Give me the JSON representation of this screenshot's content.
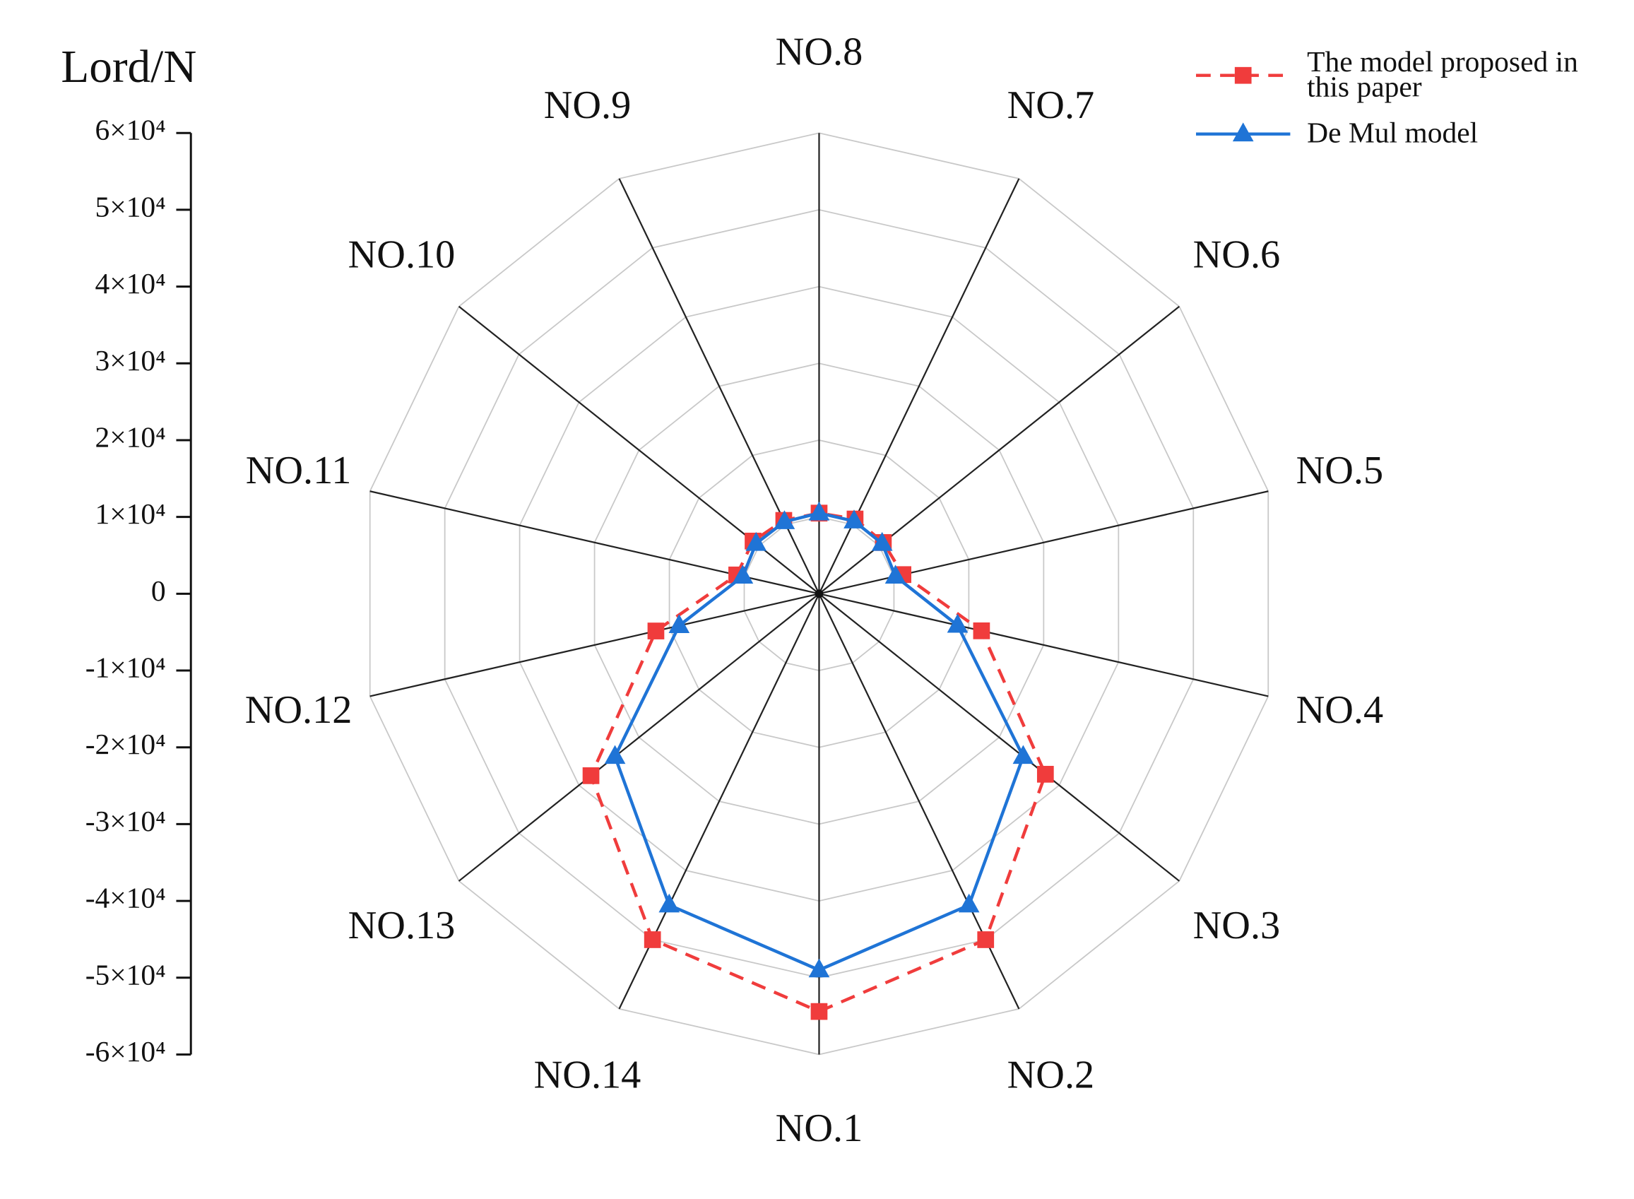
{
  "chart_data": {
    "type": "radar",
    "y_axis_title": "Lord/N",
    "categories": [
      "NO.1",
      "NO.2",
      "NO.3",
      "NO.4",
      "NO.5",
      "NO.6",
      "NO.7",
      "NO.8",
      "NO.9",
      "NO.10",
      "NO.11",
      "NO.12",
      "NO.13",
      "NO.14"
    ],
    "series": [
      {
        "name": "The model proposed in this paper",
        "color": "#f03c3c",
        "marker": "square",
        "line_style": "dashed",
        "values": [
          54400,
          50000,
          37700,
          21700,
          11200,
          10700,
          10800,
          10500,
          10600,
          11000,
          11000,
          21800,
          38000,
          50000
        ]
      },
      {
        "name": "De Mul model",
        "color": "#1f74d6",
        "marker": "triangle",
        "line_style": "solid",
        "values": [
          49000,
          45000,
          34000,
          18500,
          10200,
          10500,
          10500,
          10500,
          10400,
          10500,
          10200,
          18700,
          34000,
          45000
        ]
      }
    ],
    "rlim": [
      0,
      60000
    ],
    "rticks": [
      0,
      10000,
      20000,
      30000,
      40000,
      50000,
      60000
    ],
    "ylim": [
      -60000,
      60000
    ],
    "yticks": [
      {
        "value": 60000,
        "label": "6×10⁴"
      },
      {
        "value": 50000,
        "label": "5×10⁴"
      },
      {
        "value": 40000,
        "label": "4×10⁴"
      },
      {
        "value": 30000,
        "label": "3×10⁴"
      },
      {
        "value": 20000,
        "label": "2×10⁴"
      },
      {
        "value": 10000,
        "label": "1×10⁴"
      },
      0,
      {
        "value": -10000,
        "label": "-1×10⁴"
      },
      {
        "value": -20000,
        "label": "-2×10⁴"
      },
      {
        "value": -30000,
        "label": "-3×10⁴"
      },
      {
        "value": -40000,
        "label": "-4×10⁴"
      },
      {
        "value": -50000,
        "label": "-5×10⁴"
      },
      {
        "value": -60000,
        "label": "-6×10⁴"
      }
    ],
    "grid": true,
    "legend": "upper right"
  }
}
